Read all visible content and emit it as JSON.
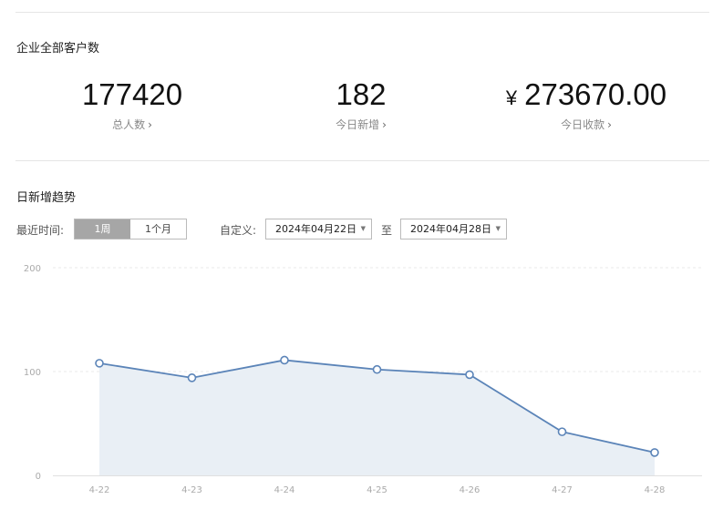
{
  "customers": {
    "title": "企业全部客户数",
    "total": {
      "value": "177420",
      "label": "总人数"
    },
    "today_new": {
      "value": "182",
      "label": "今日新增"
    },
    "today_income": {
      "currency": "¥",
      "value": "273670.00",
      "label": "今日收款"
    },
    "chevron": "›"
  },
  "trend": {
    "title": "日新增趋势",
    "range_label": "最近时间:",
    "range_options": [
      "1周",
      "1个月"
    ],
    "range_selected": "1周",
    "custom_label": "自定义:",
    "date_start": "2024年04月22日",
    "date_end": "2024年04月28日",
    "to_label": "至",
    "caret": "▼"
  },
  "chart_data": {
    "type": "line",
    "categories": [
      "4-22",
      "4-23",
      "4-24",
      "4-25",
      "4-26",
      "4-27",
      "4-28"
    ],
    "series": [
      {
        "values": [
          108,
          94,
          111,
          102,
          97,
          42,
          22
        ]
      }
    ],
    "yticks": [
      0,
      100,
      200
    ],
    "ylim": [
      0,
      200
    ],
    "area_fill": true,
    "grid": "dashed-horizontal",
    "colors": {
      "line": "#5b84b8",
      "area": "#e9eff5",
      "grid": "#e8e8e8",
      "axis": "#e0e0e0",
      "tick": "#aaaaaa"
    }
  }
}
